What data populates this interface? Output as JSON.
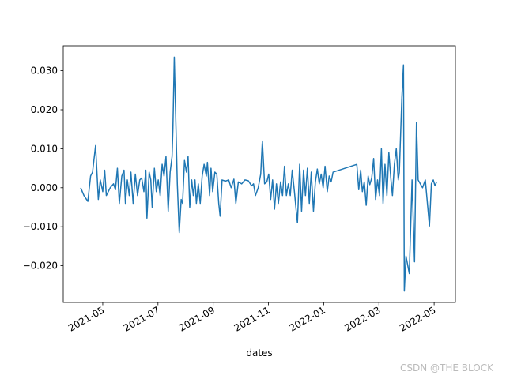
{
  "chart_data": {
    "type": "line",
    "x_label": "dates",
    "watermark": "CSDN @THE BLOCK",
    "x": [
      3.2,
      3.32,
      3.46,
      3.56,
      3.63,
      3.74,
      3.84,
      3.91,
      4.0,
      4.07,
      4.13,
      4.27,
      4.39,
      4.46,
      4.53,
      4.6,
      4.69,
      4.77,
      4.82,
      4.89,
      4.96,
      5.02,
      5.1,
      5.18,
      5.26,
      5.34,
      5.41,
      5.49,
      5.56,
      5.6,
      5.68,
      5.74,
      5.79,
      5.87,
      5.94,
      6.01,
      6.08,
      6.15,
      6.22,
      6.29,
      6.37,
      6.44,
      6.51,
      6.54,
      6.59,
      6.7,
      6.77,
      6.84,
      6.89,
      6.96,
      7.03,
      7.09,
      7.15,
      7.22,
      7.28,
      7.34,
      7.39,
      7.46,
      7.53,
      7.6,
      7.67,
      7.75,
      7.79,
      7.87,
      7.92,
      7.98,
      8.06,
      8.13,
      8.2,
      8.25,
      8.32,
      8.44,
      8.56,
      8.65,
      8.75,
      8.82,
      8.91,
      9.03,
      9.15,
      9.27,
      9.39,
      9.46,
      9.53,
      9.63,
      9.72,
      9.78,
      9.86,
      9.94,
      10.01,
      10.08,
      10.15,
      10.22,
      10.29,
      10.36,
      10.44,
      10.51,
      10.58,
      10.65,
      10.72,
      10.79,
      10.86,
      10.94,
      11.0,
      11.05,
      11.13,
      11.2,
      11.27,
      11.34,
      11.41,
      11.48,
      11.55,
      11.63,
      11.7,
      11.77,
      11.84,
      11.91,
      11.98,
      12.05,
      12.13,
      12.2,
      12.27,
      12.34,
      13.2,
      13.27,
      13.34,
      13.4,
      13.47,
      13.54,
      13.61,
      13.67,
      13.74,
      13.81,
      13.88,
      13.95,
      14.02,
      14.09,
      14.15,
      14.22,
      14.29,
      14.36,
      14.43,
      14.49,
      14.56,
      14.63,
      14.7,
      14.74,
      14.83,
      14.89,
      14.92,
      14.98,
      15.1,
      15.2,
      15.29,
      15.36,
      15.42,
      15.5,
      15.58,
      15.68,
      15.83,
      15.9,
      15.97,
      16.03,
      16.09
    ],
    "series": [
      {
        "color": "#1f77b4",
        "values": [
          0,
          -0.002,
          -0.0035,
          0.003,
          0.004,
          0.0108,
          -0.003,
          0.002,
          -0.001,
          0.0045,
          -0.002,
          0,
          0.001,
          -0.0005,
          0.005,
          -0.004,
          0.003,
          0.0045,
          -0.004,
          0.002,
          -0.002,
          0.004,
          -0.004,
          0.0035,
          -0.002,
          0.002,
          0.0025,
          -0.001,
          0.0045,
          -0.0078,
          0.004,
          0.002,
          -0.005,
          0.005,
          -0.001,
          0.002,
          -0.002,
          0.006,
          0.003,
          0.008,
          -0.006,
          0.004,
          0.008,
          0.015,
          0.0335,
          0.001,
          -0.0115,
          -0.003,
          -0.004,
          0.007,
          0.004,
          0.008,
          -0.005,
          0.002,
          -0.002,
          0.002,
          -0.004,
          0.001,
          -0.004,
          0.003,
          0.006,
          0.003,
          0.0065,
          -0.002,
          0.005,
          -0.001,
          0.004,
          0.0035,
          -0.004,
          -0.0073,
          0.002,
          0.0017,
          0.002,
          0,
          0.0022,
          -0.004,
          0.0015,
          0.001,
          0.002,
          0.0018,
          0.0005,
          0.001,
          -0.002,
          0,
          0.0035,
          0.012,
          0.001,
          0.0015,
          0.0035,
          -0.003,
          0.002,
          -0.0055,
          0.001,
          -0.004,
          0.0015,
          -0.002,
          0.0055,
          -0.002,
          0.001,
          -0.002,
          0.0045,
          -0.001,
          -0.0055,
          -0.009,
          0.006,
          -0.006,
          0.0045,
          -0.002,
          0.005,
          -0.004,
          0.004,
          -0.006,
          0.0015,
          0.0048,
          0.001,
          0.0035,
          0,
          0.0055,
          -0.001,
          0.003,
          0.0015,
          0.004,
          0.006,
          -0.0005,
          0.0045,
          -0.001,
          0.0015,
          -0.0045,
          0.003,
          0.0008,
          0.0025,
          0.0075,
          -0.003,
          0.002,
          -0.002,
          0.01,
          -0.004,
          0.006,
          -0.002,
          0.009,
          0.0025,
          -0.002,
          0.006,
          0.01,
          0.002,
          0.004,
          0.023,
          0.0315,
          -0.0265,
          -0.0175,
          -0.022,
          0.002,
          -0.019,
          0.0168,
          0.002,
          0.001,
          0,
          0.002,
          -0.0098,
          0.001,
          0.002,
          0.0005,
          0.0015
        ]
      }
    ],
    "xlim": [
      2.57,
      16.77
    ],
    "ylim": [
      -0.0294,
      0.0364
    ],
    "xticks": [
      {
        "value": 4,
        "label": "2021-05"
      },
      {
        "value": 6,
        "label": "2021-07"
      },
      {
        "value": 8,
        "label": "2021-09"
      },
      {
        "value": 10,
        "label": "2021-11"
      },
      {
        "value": 12,
        "label": "2022-01"
      },
      {
        "value": 14,
        "label": "2022-03"
      },
      {
        "value": 16,
        "label": "2022-05"
      }
    ],
    "yticks": [
      {
        "value": -0.02,
        "label": "−0.020"
      },
      {
        "value": -0.01,
        "label": "−0.010"
      },
      {
        "value": 0,
        "label": "0.000"
      },
      {
        "value": 0.01,
        "label": "0.010"
      },
      {
        "value": 0.02,
        "label": "0.020"
      },
      {
        "value": 0.03,
        "label": "0.030"
      }
    ],
    "grid": false
  }
}
